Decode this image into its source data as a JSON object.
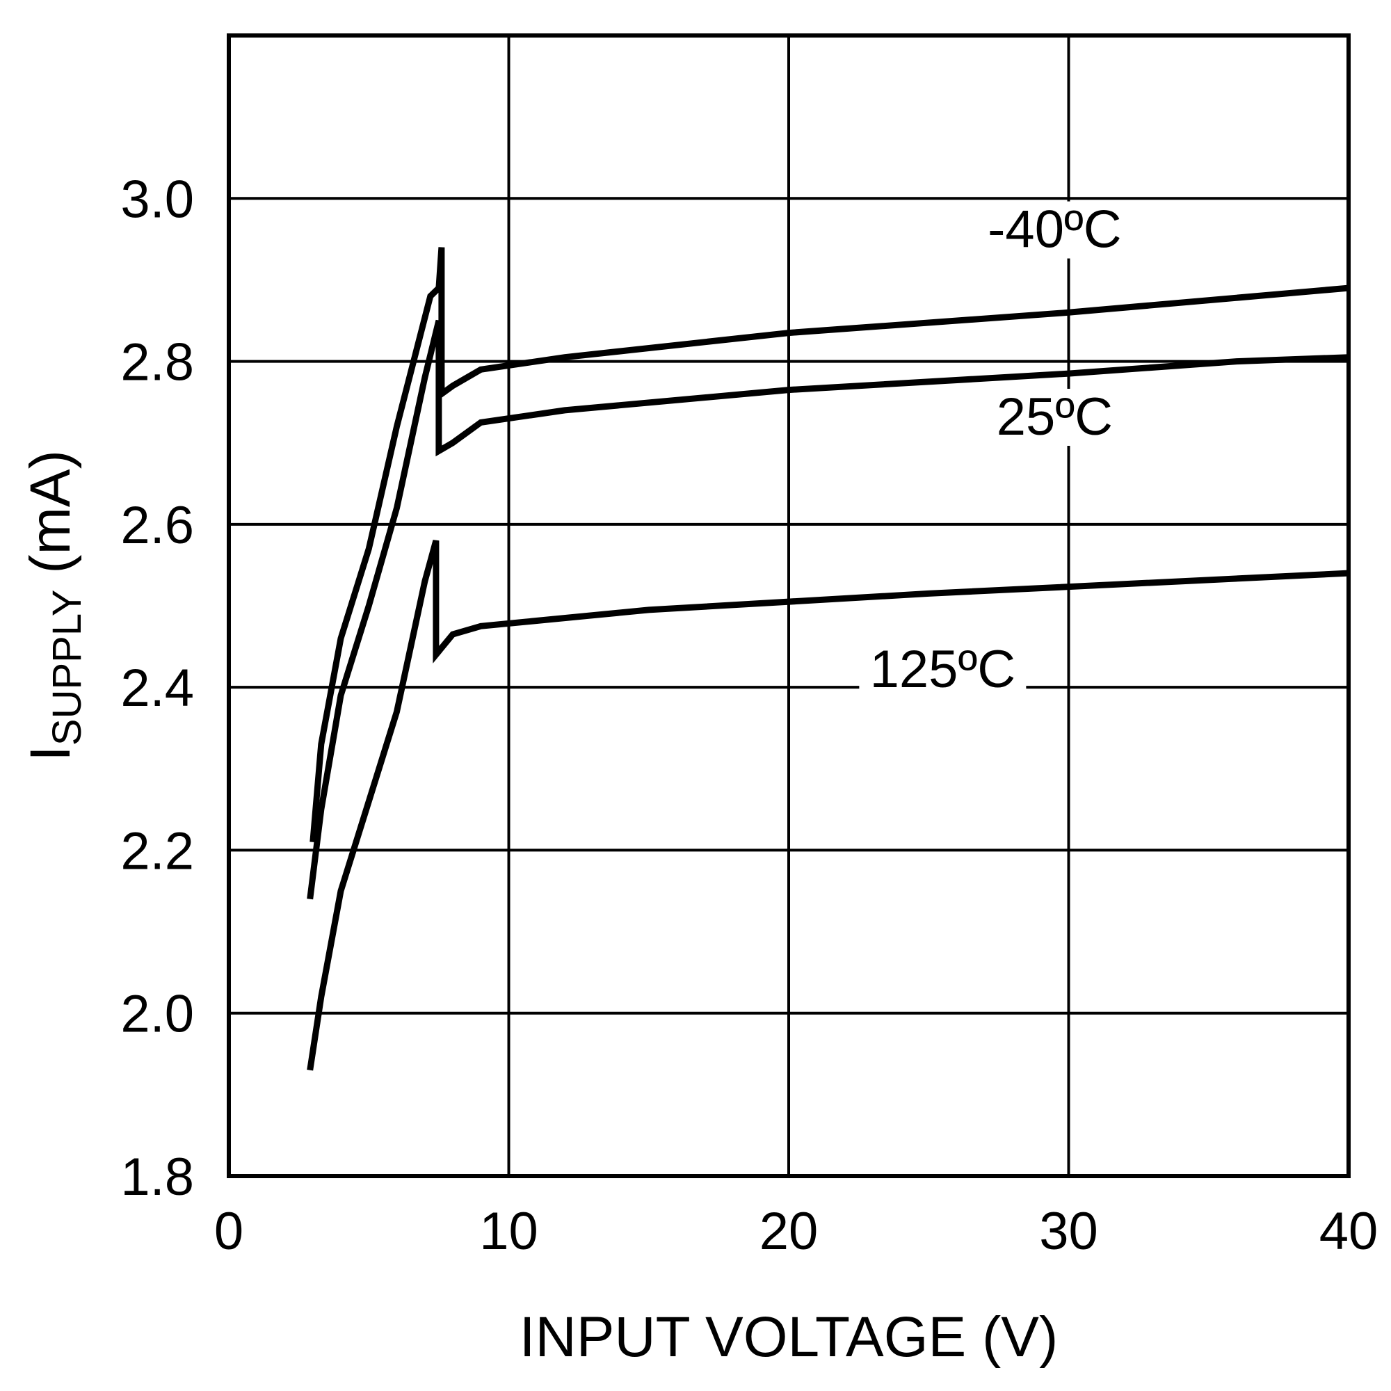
{
  "chart_data": {
    "type": "line",
    "title": "",
    "xlabel": "INPUT VOLTAGE (V)",
    "ylabel_main": "I",
    "ylabel_sub": "SUPPLY",
    "ylabel_unit": " (mA)",
    "xlim": [
      0,
      40
    ],
    "ylim": [
      1.8,
      3.2
    ],
    "x_ticks": [
      0,
      10,
      20,
      30,
      40
    ],
    "x_tick_labels": [
      "0",
      "10",
      "20",
      "30",
      "40"
    ],
    "y_ticks": [
      1.8,
      2.0,
      2.2,
      2.4,
      2.6,
      2.8,
      3.0,
      3.2
    ],
    "y_tick_labels": [
      "1.8",
      "2.0",
      "2.2",
      "2.4",
      "2.6",
      "2.8",
      "3.0",
      ""
    ],
    "grid": true,
    "legend": "inline annotations",
    "series": [
      {
        "name": "-40°C",
        "label": "-40ºC",
        "points": [
          [
            3.0,
            2.21
          ],
          [
            3.3,
            2.33
          ],
          [
            4.0,
            2.46
          ],
          [
            5.0,
            2.57
          ],
          [
            6.0,
            2.72
          ],
          [
            7.2,
            2.88
          ],
          [
            7.5,
            2.89
          ],
          [
            7.6,
            2.94
          ],
          [
            7.6,
            2.76
          ],
          [
            8.0,
            2.77
          ],
          [
            9.0,
            2.79
          ],
          [
            12.0,
            2.805
          ],
          [
            20.0,
            2.835
          ],
          [
            30.0,
            2.86
          ],
          [
            40.0,
            2.89
          ]
        ]
      },
      {
        "name": "25°C",
        "label": "25ºC",
        "points": [
          [
            2.9,
            2.14
          ],
          [
            3.3,
            2.25
          ],
          [
            4.0,
            2.39
          ],
          [
            5.0,
            2.5
          ],
          [
            6.0,
            2.62
          ],
          [
            7.0,
            2.78
          ],
          [
            7.5,
            2.85
          ],
          [
            7.5,
            2.69
          ],
          [
            8.0,
            2.7
          ],
          [
            9.0,
            2.725
          ],
          [
            12.0,
            2.74
          ],
          [
            20.0,
            2.765
          ],
          [
            30.0,
            2.785
          ],
          [
            36.0,
            2.8
          ],
          [
            40.0,
            2.805
          ]
        ]
      },
      {
        "name": "125°C",
        "label": "125ºC",
        "points": [
          [
            2.9,
            1.93
          ],
          [
            3.3,
            2.02
          ],
          [
            4.0,
            2.15
          ],
          [
            5.0,
            2.26
          ],
          [
            6.0,
            2.37
          ],
          [
            7.0,
            2.53
          ],
          [
            7.4,
            2.58
          ],
          [
            7.4,
            2.44
          ],
          [
            8.0,
            2.465
          ],
          [
            9.0,
            2.475
          ],
          [
            15.0,
            2.495
          ],
          [
            25.0,
            2.515
          ],
          [
            40.0,
            2.54
          ]
        ]
      }
    ],
    "annotations": [
      {
        "text": "-40ºC",
        "x": 29.5,
        "y": 2.94
      },
      {
        "text": "25ºC",
        "x": 29.5,
        "y": 2.71
      },
      {
        "text": "125ºC",
        "x": 25.5,
        "y": 2.4
      }
    ],
    "line_color": "#000000",
    "background": "#ffffff"
  }
}
